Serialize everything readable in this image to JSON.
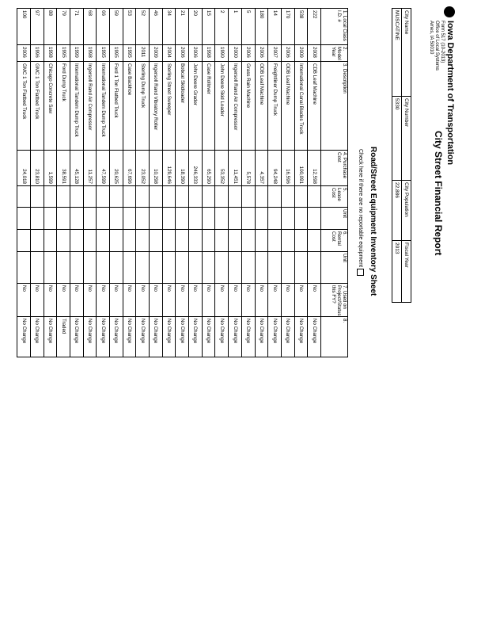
{
  "agency": {
    "name": "Iowa Department of Transportation",
    "lines": [
      "Form 517 (10-2013)",
      "Office of Local Systems",
      "Ames, IA 50010"
    ]
  },
  "report_title": "City Street Financial Report",
  "info": {
    "labels": [
      "City Name",
      "City Number",
      "City Population",
      "Fiscal Year"
    ],
    "values": [
      "MUSCATINE",
      "5330",
      "22,886",
      "2013"
    ]
  },
  "sheet_title": "Road/Street Equipment Inventory Sheet",
  "check_label": "Check here if there are no reportable equipment",
  "columns": [
    "1. Local Class I.D. #",
    "2. Model Year",
    "3. Description",
    "4. Purchase Cost",
    "5. Lease Cost",
    "Unit",
    "6. Rental Cost",
    "Unit",
    "7. Used on Project/Status this FY?",
    "8."
  ],
  "rows": [
    [
      "222",
      "2008",
      "CDB Leaf Machine",
      "12,598",
      "",
      "",
      "",
      "",
      "No",
      "No Change"
    ],
    [
      "538",
      "2009",
      "International Canal Blades Truck",
      "100,091",
      "",
      "",
      "",
      "",
      "No",
      "No Change"
    ],
    [
      "170",
      "2006",
      "ODB Leaf Machine",
      "16,596",
      "",
      "",
      "",
      "",
      "No",
      "No Change"
    ],
    [
      "14",
      "2007",
      "Freightliner Dump Truck",
      "94,248",
      "",
      "",
      "",
      "",
      "No",
      "No Change"
    ],
    [
      "180",
      "2006",
      "ODB Leaf Machine",
      "4,357",
      "",
      "",
      "",
      "",
      "No",
      "No Change"
    ],
    [
      "5",
      "2006",
      "Grass Rain Machine",
      "5,578",
      "",
      "",
      "",
      "",
      "No",
      "No Change"
    ],
    [
      "1",
      "2000",
      "Ingersoll Rand Air Compressor",
      "11,451",
      "",
      "",
      "",
      "",
      "No",
      "No Change"
    ],
    [
      "2",
      "1990",
      "John Deere Skid Loader",
      "53,352",
      "",
      "",
      "",
      "",
      "No",
      "No Change"
    ],
    [
      "15",
      "1998",
      "Case Rollover",
      "65,290",
      "",
      "",
      "",
      "",
      "No",
      "No Change"
    ],
    [
      "20",
      "2006",
      "John Deere Grader",
      "246,333",
      "",
      "",
      "",
      "",
      "No",
      "No Change"
    ],
    [
      "21",
      "2006",
      "Bobcat Skidloader",
      "18,390",
      "",
      "",
      "",
      "",
      "No",
      "No Change"
    ],
    [
      "34",
      "2004",
      "Sterling Street Sweeper",
      "129,646",
      "",
      "",
      "",
      "",
      "No",
      "No Change"
    ],
    [
      "46",
      "2009",
      "Ingersoll Rand Vibratory Roller",
      "10,298",
      "",
      "",
      "",
      "",
      "No",
      "No Change"
    ],
    [
      "52",
      "2011",
      "Sterling Dump Truck",
      "23,052",
      "",
      "",
      "",
      "",
      "No",
      "No Change"
    ],
    [
      "53",
      "1995",
      "Case Backhoe",
      "67,696",
      "",
      "",
      "",
      "",
      "No",
      "No Change"
    ],
    [
      "59",
      "1995",
      "Ford 1 Ton Flatbed Truck",
      "20,625",
      "",
      "",
      "",
      "",
      "No",
      "No Change"
    ],
    [
      "66",
      "1995",
      "International Tandem Dump Truck",
      "47,599",
      "",
      "",
      "",
      "",
      "No",
      "No Change"
    ],
    [
      "68",
      "1998",
      "Ingersoll Rand Air Compressor",
      "11,257",
      "",
      "",
      "",
      "",
      "No",
      "No Change"
    ],
    [
      "71",
      "1999",
      "International Tandem Dump Truck",
      "45,128",
      "",
      "",
      "",
      "",
      "No",
      "No Change"
    ],
    [
      "79",
      "1995",
      "Ford Dump Truck",
      "38,591",
      "",
      "",
      "",
      "",
      "No",
      "Traded"
    ],
    [
      "88",
      "1998",
      "Chicago Concrete Saw",
      "1,599",
      "",
      "",
      "",
      "",
      "No",
      "No Change"
    ],
    [
      "97",
      "1996",
      "GMC 1 Ton Flatbed Truck",
      "23,810",
      "",
      "",
      "",
      "",
      "No",
      "No Change"
    ],
    [
      "100",
      "2006",
      "GMC 1 Ton Flatbed Truck",
      "24,018",
      "",
      "",
      "",
      "",
      "No",
      "No Change"
    ]
  ]
}
